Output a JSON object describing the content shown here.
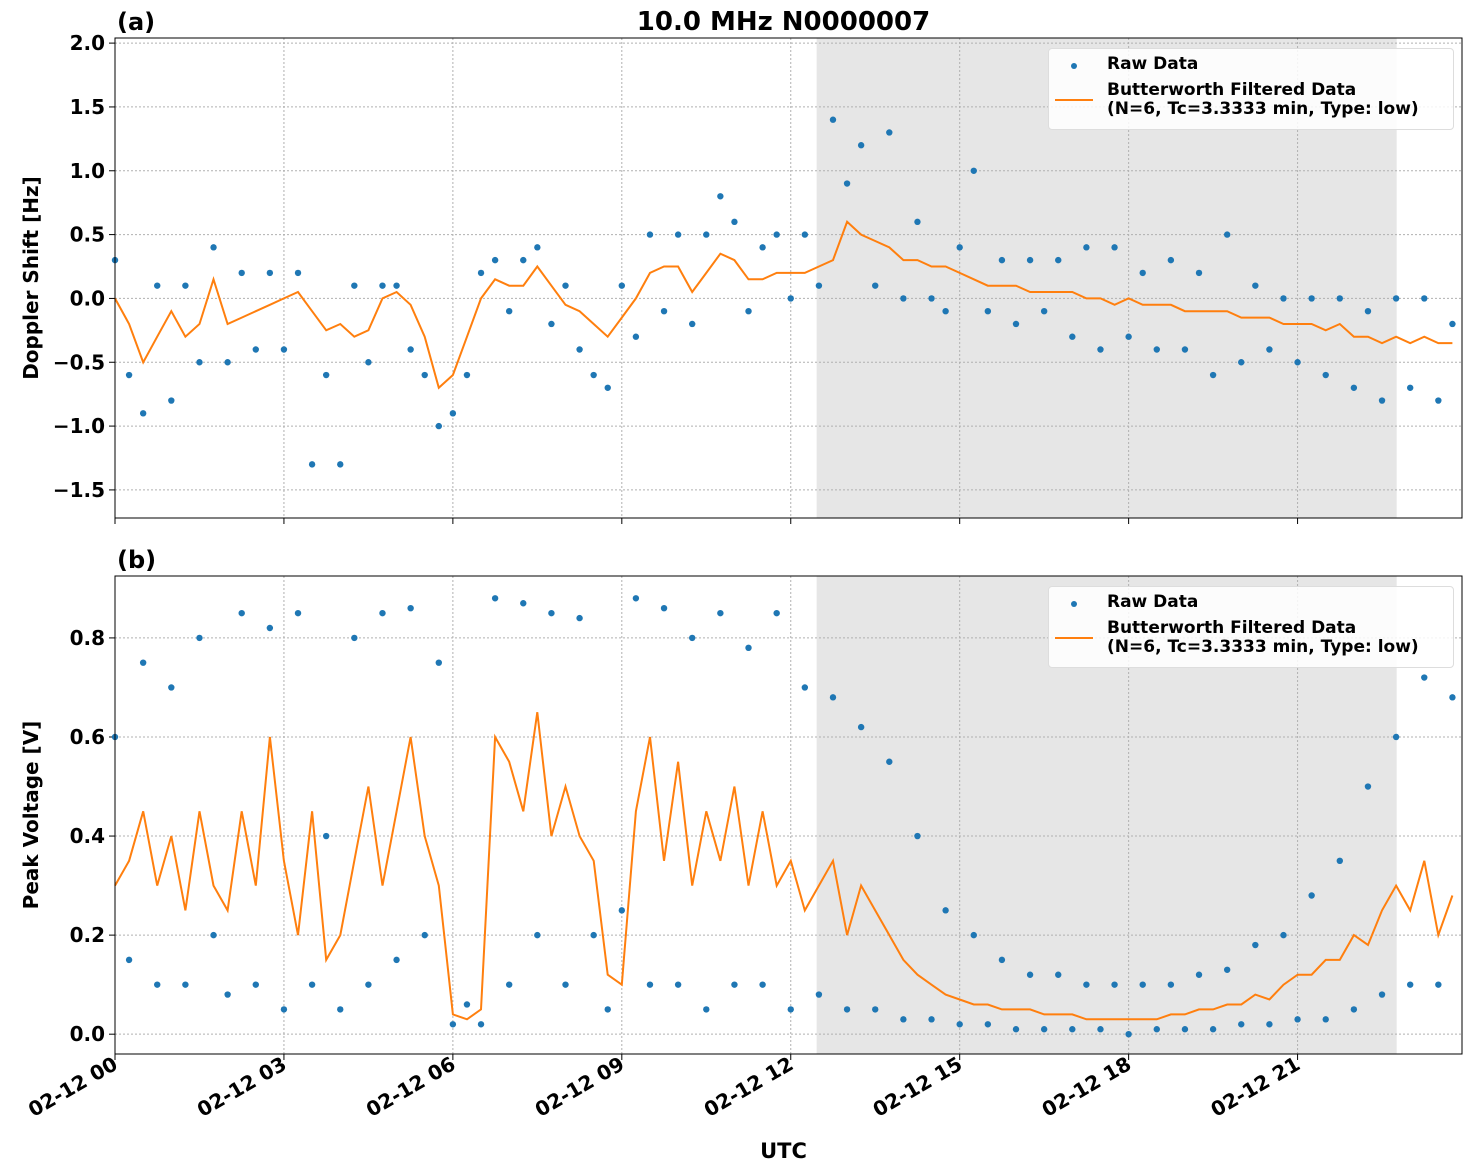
{
  "chart_data": [
    {
      "type": "scatter-line",
      "panel_label": "(a)",
      "title": "10.0 MHz N0000007",
      "ylabel": "Doppler Shift [Hz]",
      "xlim": [
        0,
        23.92
      ],
      "ylim": [
        -1.72,
        2.04
      ],
      "xticks": [
        0,
        3,
        6,
        9,
        12,
        15,
        18,
        21
      ],
      "yticks": [
        {
          "value": -1.5,
          "label": "−1.5"
        },
        {
          "value": -1,
          "label": "−1.0"
        },
        {
          "value": -0.5,
          "label": "−0.5"
        },
        {
          "value": 0,
          "label": "0.0"
        },
        0.5,
        {
          "value": 1,
          "label": "1.0"
        },
        1.5,
        {
          "value": 2,
          "label": "2.0"
        }
      ],
      "grid": true,
      "shade": {
        "x": [
          12.46,
          22.76
        ],
        "color": "#e6e6e6"
      },
      "legend": "upper right",
      "x": [
        0,
        0.25,
        0.5,
        0.75,
        1,
        1.25,
        1.5,
        1.75,
        2,
        2.25,
        2.5,
        2.75,
        3,
        3.25,
        3.5,
        3.75,
        4,
        4.25,
        4.5,
        4.75,
        5,
        5.25,
        5.5,
        5.75,
        6,
        6.25,
        6.5,
        6.75,
        7,
        7.25,
        7.5,
        7.75,
        8,
        8.25,
        8.5,
        8.75,
        9,
        9.25,
        9.5,
        9.75,
        10,
        10.25,
        10.5,
        10.75,
        11,
        11.25,
        11.5,
        11.75,
        12,
        12.25,
        12.5,
        12.75,
        13,
        13.25,
        13.5,
        13.75,
        14,
        14.25,
        14.5,
        14.75,
        15,
        15.25,
        15.5,
        15.75,
        16,
        16.25,
        16.5,
        16.75,
        17,
        17.25,
        17.5,
        17.75,
        18,
        18.25,
        18.5,
        18.75,
        19,
        19.25,
        19.5,
        19.75,
        20,
        20.25,
        20.5,
        20.75,
        21,
        21.25,
        21.5,
        21.75,
        22,
        22.25,
        22.5,
        22.75,
        23,
        23.25,
        23.5,
        23.75
      ],
      "series": [
        {
          "name": "Raw Data",
          "kind": "scatter",
          "color": "#1f77b4",
          "values": [
            0.3,
            -0.6,
            -0.9,
            0.1,
            -0.8,
            0.1,
            -0.5,
            0.4,
            -0.5,
            0.2,
            -0.4,
            0.2,
            -0.4,
            0.2,
            -1.3,
            -0.6,
            -1.3,
            0.1,
            -0.5,
            0.1,
            0.1,
            -0.4,
            -0.6,
            -1.0,
            -0.9,
            -0.6,
            0.2,
            0.3,
            -0.1,
            0.3,
            0.4,
            -0.2,
            0.1,
            -0.4,
            -0.6,
            -0.7,
            0.1,
            -0.3,
            0.5,
            -0.1,
            0.5,
            -0.2,
            0.5,
            0.8,
            0.6,
            -0.1,
            0.4,
            0.5,
            0.0,
            0.5,
            0.1,
            1.4,
            0.9,
            1.2,
            0.1,
            1.3,
            0.0,
            0.6,
            0.0,
            -0.1,
            0.4,
            1.0,
            -0.1,
            0.3,
            -0.2,
            0.3,
            -0.1,
            0.3,
            -0.3,
            0.4,
            -0.4,
            0.4,
            -0.3,
            0.2,
            -0.4,
            0.3,
            -0.4,
            0.2,
            -0.6,
            0.5,
            -0.5,
            0.1,
            -0.4,
            0.0,
            -0.5,
            0.0,
            -0.6,
            0.0,
            -0.7,
            -0.1,
            -0.8,
            0.0,
            -0.7,
            0.0,
            -0.8,
            -0.2
          ]
        },
        {
          "name": "Butterworth Filtered Data\n(N=6, Tc=3.3333 min, Type: low)",
          "kind": "line",
          "color": "#ff7f0e",
          "values": [
            0.0,
            -0.2,
            -0.5,
            -0.3,
            -0.1,
            -0.3,
            -0.2,
            0.15,
            -0.2,
            -0.15,
            -0.1,
            -0.05,
            0.0,
            0.05,
            -0.1,
            -0.25,
            -0.2,
            -0.3,
            -0.25,
            0.0,
            0.05,
            -0.05,
            -0.3,
            -0.7,
            -0.6,
            -0.3,
            0.0,
            0.15,
            0.1,
            0.1,
            0.25,
            0.1,
            -0.05,
            -0.1,
            -0.2,
            -0.3,
            -0.15,
            0.0,
            0.2,
            0.25,
            0.25,
            0.05,
            0.2,
            0.35,
            0.3,
            0.15,
            0.15,
            0.2,
            0.2,
            0.2,
            0.25,
            0.3,
            0.6,
            0.5,
            0.45,
            0.4,
            0.3,
            0.3,
            0.25,
            0.25,
            0.2,
            0.15,
            0.1,
            0.1,
            0.1,
            0.05,
            0.05,
            0.05,
            0.05,
            0.0,
            0.0,
            -0.05,
            0.0,
            -0.05,
            -0.05,
            -0.05,
            -0.1,
            -0.1,
            -0.1,
            -0.1,
            -0.15,
            -0.15,
            -0.15,
            -0.2,
            -0.2,
            -0.2,
            -0.25,
            -0.2,
            -0.3,
            -0.3,
            -0.35,
            -0.3,
            -0.35,
            -0.3,
            -0.35,
            -0.35
          ]
        }
      ]
    },
    {
      "type": "scatter-line",
      "panel_label": "(b)",
      "ylabel": "Peak Voltage [V]",
      "xlabel": "UTC",
      "xlim": [
        0,
        23.92
      ],
      "ylim": [
        -0.04,
        0.925
      ],
      "xticks": [
        {
          "value": 0,
          "label": "02-12 00"
        },
        {
          "value": 3,
          "label": "02-12 03"
        },
        {
          "value": 6,
          "label": "02-12 06"
        },
        {
          "value": 9,
          "label": "02-12 09"
        },
        {
          "value": 12,
          "label": "02-12 12"
        },
        {
          "value": 15,
          "label": "02-12 15"
        },
        {
          "value": 18,
          "label": "02-12 18"
        },
        {
          "value": 21,
          "label": "02-12 21"
        }
      ],
      "yticks": [
        {
          "value": 0,
          "label": "0.0"
        },
        0.2,
        0.4,
        0.6,
        0.8
      ],
      "grid": true,
      "shade": {
        "x": [
          12.46,
          22.76
        ],
        "color": "#e6e6e6"
      },
      "legend": "upper right",
      "x": [
        0,
        0.25,
        0.5,
        0.75,
        1,
        1.25,
        1.5,
        1.75,
        2,
        2.25,
        2.5,
        2.75,
        3,
        3.25,
        3.5,
        3.75,
        4,
        4.25,
        4.5,
        4.75,
        5,
        5.25,
        5.5,
        5.75,
        6,
        6.25,
        6.5,
        6.75,
        7,
        7.25,
        7.5,
        7.75,
        8,
        8.25,
        8.5,
        8.75,
        9,
        9.25,
        9.5,
        9.75,
        10,
        10.25,
        10.5,
        10.75,
        11,
        11.25,
        11.5,
        11.75,
        12,
        12.25,
        12.5,
        12.75,
        13,
        13.25,
        13.5,
        13.75,
        14,
        14.25,
        14.5,
        14.75,
        15,
        15.25,
        15.5,
        15.75,
        16,
        16.25,
        16.5,
        16.75,
        17,
        17.25,
        17.5,
        17.75,
        18,
        18.25,
        18.5,
        18.75,
        19,
        19.25,
        19.5,
        19.75,
        20,
        20.25,
        20.5,
        20.75,
        21,
        21.25,
        21.5,
        21.75,
        22,
        22.25,
        22.5,
        22.75,
        23,
        23.25,
        23.5,
        23.75
      ],
      "series": [
        {
          "name": "Raw Data",
          "kind": "scatter",
          "color": "#1f77b4",
          "values": [
            0.6,
            0.15,
            0.75,
            0.1,
            0.7,
            0.1,
            0.8,
            0.2,
            0.08,
            0.85,
            0.1,
            0.82,
            0.05,
            0.85,
            0.1,
            0.4,
            0.05,
            0.8,
            0.1,
            0.85,
            0.15,
            0.86,
            0.2,
            0.75,
            0.02,
            0.06,
            0.02,
            0.88,
            0.1,
            0.87,
            0.2,
            0.85,
            0.1,
            0.84,
            0.2,
            0.05,
            0.25,
            0.88,
            0.1,
            0.86,
            0.1,
            0.8,
            0.05,
            0.85,
            0.1,
            0.78,
            0.1,
            0.85,
            0.05,
            0.7,
            0.08,
            0.68,
            0.05,
            0.62,
            0.05,
            0.55,
            0.03,
            0.4,
            0.03,
            0.25,
            0.02,
            0.2,
            0.02,
            0.15,
            0.01,
            0.12,
            0.01,
            0.12,
            0.01,
            0.1,
            0.01,
            0.1,
            0.0,
            0.1,
            0.01,
            0.1,
            0.01,
            0.12,
            0.01,
            0.13,
            0.02,
            0.18,
            0.02,
            0.2,
            0.03,
            0.28,
            0.03,
            0.35,
            0.05,
            0.5,
            0.08,
            0.6,
            0.1,
            0.72,
            0.1,
            0.68
          ]
        },
        {
          "name": "Butterworth Filtered Data\n(N=6, Tc=3.3333 min, Type: low)",
          "kind": "line",
          "color": "#ff7f0e",
          "values": [
            0.3,
            0.35,
            0.45,
            0.3,
            0.4,
            0.25,
            0.45,
            0.3,
            0.25,
            0.45,
            0.3,
            0.6,
            0.35,
            0.2,
            0.45,
            0.15,
            0.2,
            0.35,
            0.5,
            0.3,
            0.45,
            0.6,
            0.4,
            0.3,
            0.04,
            0.03,
            0.05,
            0.6,
            0.55,
            0.45,
            0.65,
            0.4,
            0.5,
            0.4,
            0.35,
            0.12,
            0.1,
            0.45,
            0.6,
            0.35,
            0.55,
            0.3,
            0.45,
            0.35,
            0.5,
            0.3,
            0.45,
            0.3,
            0.35,
            0.25,
            0.3,
            0.35,
            0.2,
            0.3,
            0.25,
            0.2,
            0.15,
            0.12,
            0.1,
            0.08,
            0.07,
            0.06,
            0.06,
            0.05,
            0.05,
            0.05,
            0.04,
            0.04,
            0.04,
            0.03,
            0.03,
            0.03,
            0.03,
            0.03,
            0.03,
            0.04,
            0.04,
            0.05,
            0.05,
            0.06,
            0.06,
            0.08,
            0.07,
            0.1,
            0.12,
            0.12,
            0.15,
            0.15,
            0.2,
            0.18,
            0.25,
            0.3,
            0.25,
            0.35,
            0.2,
            0.28
          ]
        }
      ]
    }
  ]
}
